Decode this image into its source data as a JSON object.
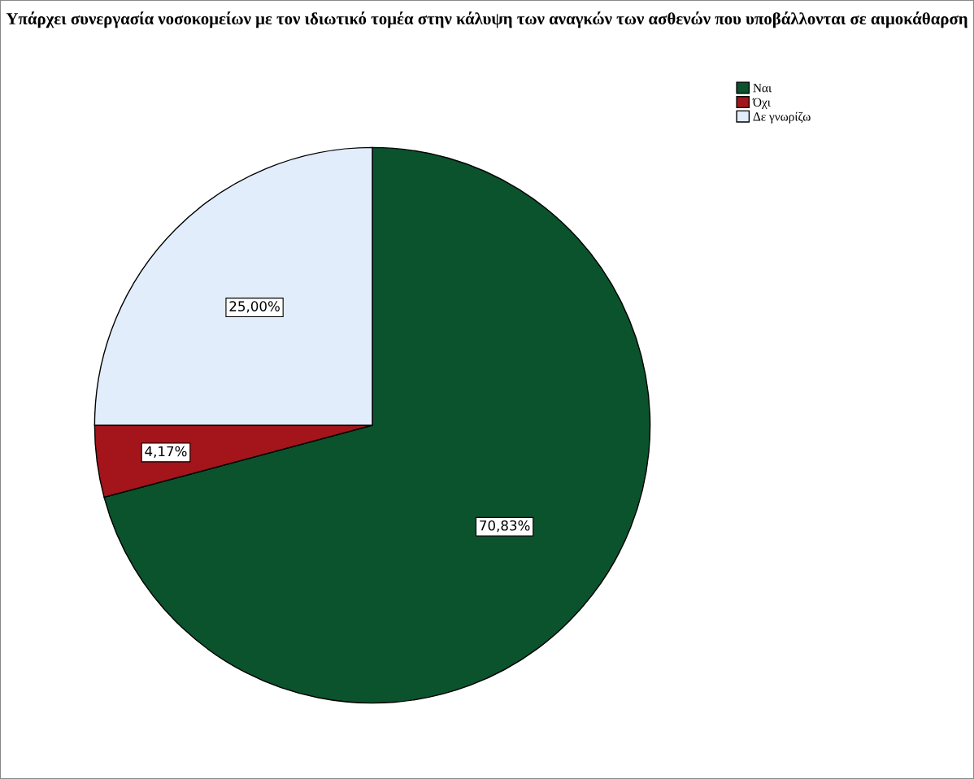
{
  "chart_data": {
    "type": "pie",
    "title": "Υπάρχει συνεργασία νοσοκομείων με τον ιδιωτικό τομέα στην κάλυψη των αναγκών των ασθενών που υποβάλλονται σε αιμοκάθαρση",
    "categories": [
      "Ναι",
      "Όχι",
      "Δε γνωρίζω"
    ],
    "values": [
      70.83,
      4.17,
      25.0
    ],
    "value_labels": [
      "70,83%",
      "4,17%",
      "25,00%"
    ],
    "colors": [
      "#0b532d",
      "#a3151a",
      "#e1edfb"
    ],
    "legend": "top right"
  }
}
